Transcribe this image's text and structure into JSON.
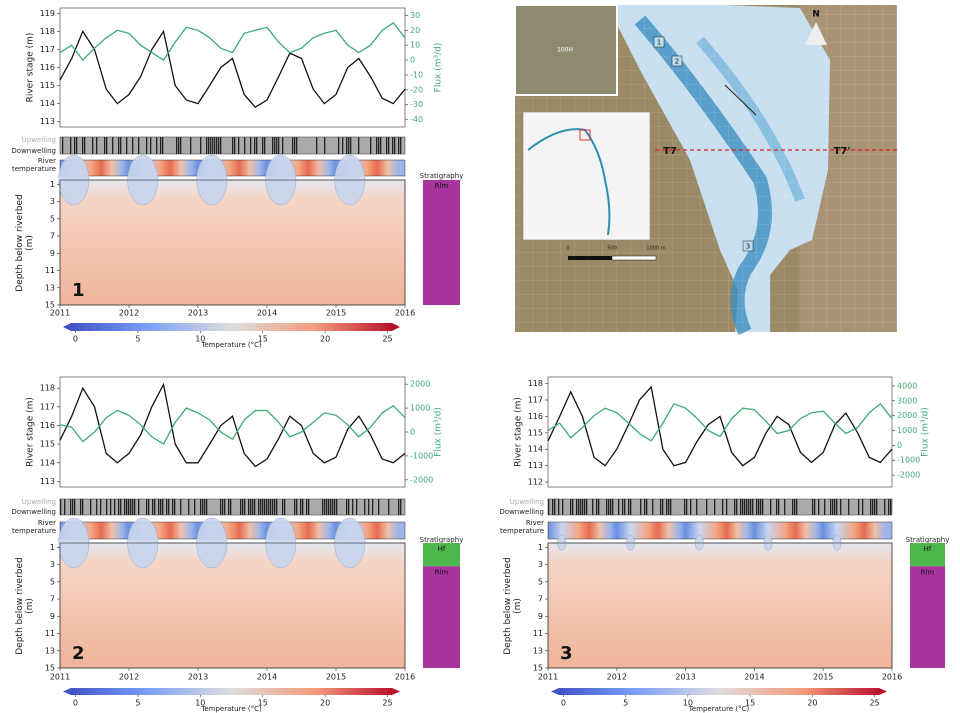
{
  "chart_data": [
    {
      "type": "line",
      "panel_label": "1",
      "ylabel": "River stage (m)",
      "y2label": "Flux (m³/d)",
      "x": [
        2011,
        2011.17,
        2011.33,
        2011.5,
        2011.67,
        2011.83,
        2012,
        2012.17,
        2012.33,
        2012.5,
        2012.67,
        2012.83,
        2013,
        2013.17,
        2013.33,
        2013.5,
        2013.67,
        2013.83,
        2014,
        2014.17,
        2014.33,
        2014.5,
        2014.67,
        2014.83,
        2015,
        2015.17,
        2015.33,
        2015.5,
        2015.67,
        2015.83,
        2016
      ],
      "xlim": [
        2011,
        2016
      ],
      "xticks": [
        2011,
        2012,
        2013,
        2014,
        2015,
        2016
      ],
      "ylim": [
        112.7,
        119.3
      ],
      "yticks": [
        113,
        114,
        115,
        116,
        117,
        118,
        119
      ],
      "y2lim": [
        -45,
        35
      ],
      "y2ticks": [
        -40,
        -30,
        -20,
        -10,
        0,
        10,
        20,
        30
      ],
      "series": [
        {
          "color": "#111111",
          "values": [
            115.3,
            116.5,
            118.0,
            117.0,
            114.8,
            114.0,
            114.5,
            115.5,
            117.0,
            118.0,
            115.0,
            114.2,
            114.0,
            115.0,
            116.0,
            116.5,
            114.5,
            113.8,
            114.2,
            115.5,
            116.8,
            116.5,
            114.8,
            114.0,
            114.5,
            116.0,
            116.5,
            115.5,
            114.3,
            114.0,
            114.8
          ]
        },
        {
          "color": "#3daa77",
          "axis": "y2",
          "values": [
            5,
            10,
            0,
            8,
            15,
            20,
            18,
            10,
            5,
            0,
            12,
            22,
            20,
            15,
            8,
            5,
            18,
            20,
            22,
            12,
            5,
            8,
            15,
            18,
            20,
            10,
            5,
            10,
            20,
            25,
            15
          ]
        }
      ],
      "upwelling_label": "Upwelling",
      "downwelling_label": "Downwelling",
      "river_temperature_label": "River temperature",
      "depth_label": "Depth below riverbed (m)",
      "depth_lim": [
        0.5,
        15
      ],
      "depth_ticks": [
        1,
        3,
        5,
        7,
        9,
        11,
        13,
        15
      ],
      "stratigraphy_label": "Stratigraphy",
      "layers": [
        {
          "label": "Rlm",
          "color": "#a8359d",
          "top": 0.5,
          "bottom": 15
        }
      ],
      "colorbar": {
        "label": "Temperature (°C)",
        "lim": [
          -1,
          26
        ],
        "ticks": [
          0,
          5,
          10,
          15,
          20,
          25
        ]
      }
    },
    {
      "type": "line",
      "panel_label": "2",
      "ylabel": "River stage (m)",
      "y2label": "Flux (m³/d)",
      "x": [
        2011,
        2011.17,
        2011.33,
        2011.5,
        2011.67,
        2011.83,
        2012,
        2012.17,
        2012.33,
        2012.5,
        2012.67,
        2012.83,
        2013,
        2013.17,
        2013.33,
        2013.5,
        2013.67,
        2013.83,
        2014,
        2014.17,
        2014.33,
        2014.5,
        2014.67,
        2014.83,
        2015,
        2015.17,
        2015.33,
        2015.5,
        2015.67,
        2015.83,
        2016
      ],
      "xlim": [
        2011,
        2016
      ],
      "xticks": [
        2011,
        2012,
        2013,
        2014,
        2015,
        2016
      ],
      "ylim": [
        112.7,
        118.6
      ],
      "yticks": [
        113,
        114,
        115,
        116,
        117,
        118
      ],
      "y2lim": [
        -2300,
        2300
      ],
      "y2ticks": [
        -2000,
        -1000,
        0,
        1000,
        2000
      ],
      "series": [
        {
          "color": "#111111",
          "values": [
            115.2,
            116.5,
            118.0,
            117.0,
            114.5,
            114.0,
            114.5,
            115.5,
            117.0,
            118.2,
            115.0,
            114.0,
            114.0,
            115.0,
            116.0,
            116.5,
            114.5,
            113.8,
            114.2,
            115.3,
            116.5,
            116.0,
            114.5,
            114.0,
            114.3,
            115.8,
            116.5,
            115.5,
            114.2,
            114.0,
            114.5
          ]
        },
        {
          "color": "#3daa77",
          "axis": "y2",
          "values": [
            300,
            200,
            -400,
            0,
            600,
            900,
            700,
            300,
            -200,
            -500,
            400,
            1000,
            800,
            500,
            0,
            -300,
            500,
            900,
            900,
            400,
            -200,
            0,
            400,
            800,
            700,
            300,
            -200,
            200,
            800,
            1100,
            600
          ]
        }
      ],
      "upwelling_label": "Upwelling",
      "downwelling_label": "Downwelling",
      "river_temperature_label": "River temperature",
      "depth_label": "Depth below riverbed (m)",
      "depth_lim": [
        0.5,
        15
      ],
      "depth_ticks": [
        1,
        3,
        5,
        7,
        9,
        11,
        13,
        15
      ],
      "stratigraphy_label": "Stratigraphy",
      "layers": [
        {
          "label": "Hf",
          "color": "#4cb84c",
          "top": 0.5,
          "bottom": 3.2
        },
        {
          "label": "Rlm",
          "color": "#a8359d",
          "top": 3.2,
          "bottom": 15
        }
      ],
      "colorbar": {
        "label": "Temperature (°C)",
        "lim": [
          -1,
          26
        ],
        "ticks": [
          0,
          5,
          10,
          15,
          20,
          25
        ]
      }
    },
    {
      "type": "line",
      "panel_label": "3",
      "ylabel": "River stage (m)",
      "y2label": "Flux (m³/d)",
      "x": [
        2011,
        2011.17,
        2011.33,
        2011.5,
        2011.67,
        2011.83,
        2012,
        2012.17,
        2012.33,
        2012.5,
        2012.67,
        2012.83,
        2013,
        2013.17,
        2013.33,
        2013.5,
        2013.67,
        2013.83,
        2014,
        2014.17,
        2014.33,
        2014.5,
        2014.67,
        2014.83,
        2015,
        2015.17,
        2015.33,
        2015.5,
        2015.67,
        2015.83,
        2016
      ],
      "xlim": [
        2011,
        2016
      ],
      "xticks": [
        2011,
        2012,
        2013,
        2014,
        2015,
        2016
      ],
      "ylim": [
        111.7,
        118.4
      ],
      "yticks": [
        112,
        113,
        114,
        115,
        116,
        117,
        118
      ],
      "y2lim": [
        -2800,
        4600
      ],
      "y2ticks": [
        -2000,
        -1000,
        0,
        1000,
        2000,
        3000,
        4000
      ],
      "series": [
        {
          "color": "#111111",
          "values": [
            114.5,
            116.0,
            117.5,
            116.0,
            113.5,
            113.0,
            114.0,
            115.5,
            117.0,
            117.8,
            114.0,
            113.0,
            113.2,
            114.5,
            115.5,
            116.0,
            113.8,
            113.0,
            113.5,
            115.0,
            116.0,
            115.5,
            113.8,
            113.2,
            113.8,
            115.5,
            116.2,
            115.0,
            113.5,
            113.2,
            114.0
          ]
        },
        {
          "color": "#3daa77",
          "axis": "y2",
          "values": [
            1000,
            1500,
            500,
            1200,
            2000,
            2500,
            2200,
            1500,
            800,
            300,
            1500,
            2800,
            2500,
            1800,
            1000,
            600,
            1800,
            2500,
            2400,
            1600,
            800,
            1000,
            1800,
            2200,
            2300,
            1500,
            800,
            1200,
            2200,
            2800,
            1800
          ]
        }
      ],
      "upwelling_label": "Upwelling",
      "downwelling_label": "Downwelling",
      "river_temperature_label": "River temperature",
      "depth_label": "Depth below riverbed (m)",
      "depth_lim": [
        0.5,
        15
      ],
      "depth_ticks": [
        1,
        3,
        5,
        7,
        9,
        11,
        13,
        15
      ],
      "stratigraphy_label": "Stratigraphy",
      "layers": [
        {
          "label": "Hf",
          "color": "#4cb84c",
          "top": 0.5,
          "bottom": 3.2
        },
        {
          "label": "Rlm",
          "color": "#a8359d",
          "top": 3.2,
          "bottom": 15
        }
      ],
      "colorbar": {
        "label": "Temperature (°C)",
        "lim": [
          -1,
          26
        ],
        "ticks": [
          0,
          5,
          10,
          15,
          20,
          25
        ]
      }
    }
  ],
  "map": {
    "north": "N",
    "transect_start": "T7",
    "transect_end": "T7'",
    "site": "100H",
    "points": [
      "1",
      "2",
      "3"
    ],
    "scale_labels": [
      "0",
      "500",
      "1000 m"
    ]
  }
}
